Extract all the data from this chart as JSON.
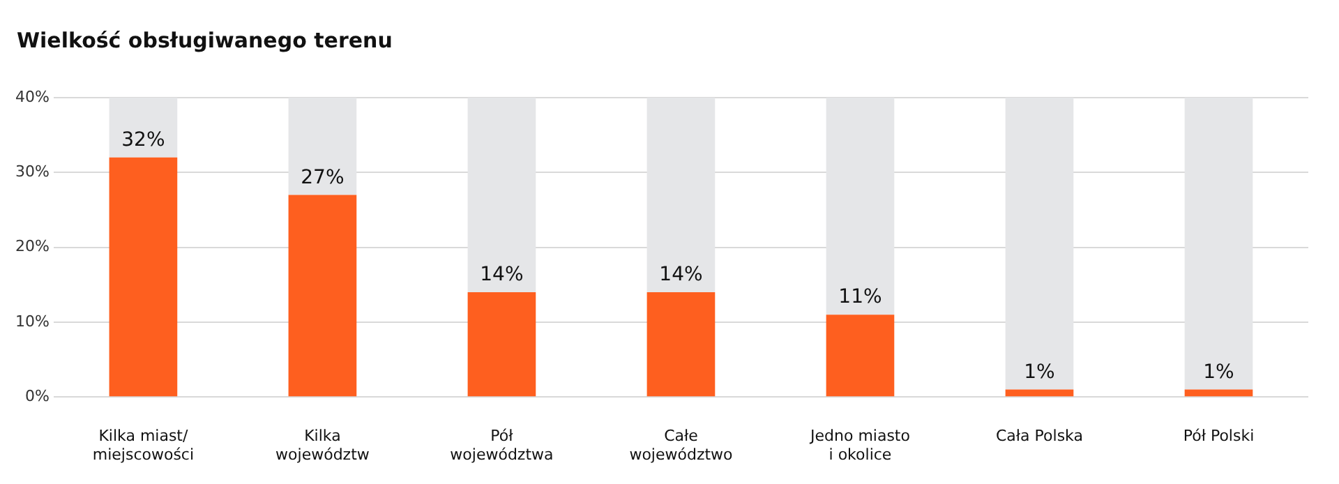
{
  "chart_data": {
    "type": "bar",
    "title": "Wielkość obsługiwanego terenu",
    "categories": [
      "Kilka miast/\nmiejscowości",
      "Kilka\nwojewództw",
      "Pół\nwojewództwa",
      "Całe\nwojewództwo",
      "Jedno miasto\ni okolice",
      "Cała Polska",
      "Pół Polski"
    ],
    "series": [
      {
        "color": "#fe5f1f",
        "values": [
          32,
          27,
          14,
          14,
          11,
          1,
          1
        ],
        "value_labels": [
          "32%",
          "27%",
          "14%",
          "14%",
          "11%",
          "1%",
          "1%"
        ]
      },
      {
        "color": "#e5e6e8",
        "values": [
          8,
          13,
          26,
          26,
          29,
          39,
          39
        ]
      }
    ],
    "stacked": true,
    "ylim": [
      0,
      40
    ],
    "yticks": [
      {
        "value": 0,
        "label": "0%"
      },
      {
        "value": 10,
        "label": "10%"
      },
      {
        "value": 20,
        "label": "20%"
      },
      {
        "value": 30,
        "label": "30%"
      },
      {
        "value": 40,
        "label": "40%"
      }
    ],
    "grid": "y",
    "legend": false
  }
}
